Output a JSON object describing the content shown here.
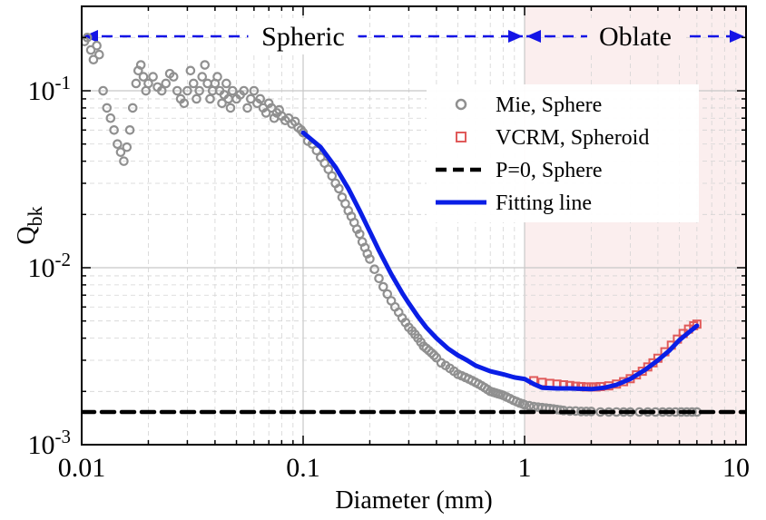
{
  "chart_data": {
    "type": "scatter",
    "title": "",
    "xlabel": "Diameter (mm)",
    "ylabel": "Q",
    "ylabel_subscript": "bk",
    "xscale": "log",
    "yscale": "log",
    "xlim": [
      0.01,
      10
    ],
    "ylim": [
      0.001,
      0.3
    ],
    "grid": true,
    "legend_position": "top-right",
    "x_ticks": [
      {
        "value": 0.01,
        "label": "0.01"
      },
      {
        "value": 0.1,
        "label": "0.1"
      },
      {
        "value": 1,
        "label": "1"
      },
      {
        "value": 10,
        "label": "10"
      }
    ],
    "y_ticks": [
      {
        "value": 0.001,
        "base": "10",
        "exp": "-3"
      },
      {
        "value": 0.01,
        "base": "10",
        "exp": "-2"
      },
      {
        "value": 0.1,
        "base": "10",
        "exp": "-1"
      }
    ],
    "regions": [
      {
        "label": "Spheric",
        "x_range": [
          0.01,
          1
        ],
        "shaded": false
      },
      {
        "label": "Oblate",
        "x_range": [
          1,
          10
        ],
        "shaded": true,
        "shade_color": "#fbeeee"
      }
    ],
    "region_arrow_color": "#1414e6",
    "series": [
      {
        "name": "Mie, Sphere",
        "style": "open-circle",
        "color": "#909090",
        "x": [
          0.0103,
          0.0106,
          0.011,
          0.0113,
          0.0117,
          0.012,
          0.0125,
          0.013,
          0.0135,
          0.014,
          0.0145,
          0.015,
          0.0155,
          0.016,
          0.0165,
          0.017,
          0.0176,
          0.018,
          0.0185,
          0.019,
          0.0195,
          0.02,
          0.021,
          0.022,
          0.023,
          0.024,
          0.025,
          0.026,
          0.027,
          0.028,
          0.029,
          0.03,
          0.031,
          0.032,
          0.033,
          0.034,
          0.035,
          0.036,
          0.037,
          0.038,
          0.039,
          0.04,
          0.041,
          0.042,
          0.043,
          0.044,
          0.045,
          0.046,
          0.047,
          0.048,
          0.05,
          0.052,
          0.054,
          0.056,
          0.058,
          0.06,
          0.062,
          0.064,
          0.066,
          0.068,
          0.07,
          0.072,
          0.074,
          0.076,
          0.078,
          0.08,
          0.083,
          0.086,
          0.089,
          0.092,
          0.095,
          0.098,
          0.1,
          0.105,
          0.11,
          0.115,
          0.12,
          0.125,
          0.13,
          0.135,
          0.14,
          0.145,
          0.15,
          0.155,
          0.16,
          0.165,
          0.17,
          0.175,
          0.18,
          0.185,
          0.19,
          0.195,
          0.2,
          0.21,
          0.22,
          0.23,
          0.24,
          0.25,
          0.26,
          0.27,
          0.28,
          0.29,
          0.3,
          0.31,
          0.32,
          0.33,
          0.34,
          0.35,
          0.36,
          0.37,
          0.38,
          0.39,
          0.4,
          0.42,
          0.44,
          0.46,
          0.48,
          0.5,
          0.52,
          0.54,
          0.56,
          0.58,
          0.6,
          0.62,
          0.64,
          0.66,
          0.68,
          0.7,
          0.72,
          0.74,
          0.76,
          0.78,
          0.8,
          0.83,
          0.86,
          0.89,
          0.92,
          0.95,
          0.98,
          1.0,
          1.05,
          1.1,
          1.15,
          1.2,
          1.25,
          1.3,
          1.35,
          1.4,
          1.45,
          1.5,
          1.6,
          1.7,
          1.8,
          1.9,
          2.0,
          2.2,
          2.4,
          2.6,
          2.8,
          3.0,
          3.3,
          3.6,
          3.9,
          4.2,
          4.5,
          4.8,
          5.1,
          5.4,
          5.7,
          6.0
        ],
        "y": [
          0.19,
          0.2,
          0.17,
          0.15,
          0.18,
          0.16,
          0.1,
          0.08,
          0.07,
          0.06,
          0.05,
          0.045,
          0.04,
          0.048,
          0.06,
          0.08,
          0.11,
          0.13,
          0.14,
          0.12,
          0.1,
          0.11,
          0.12,
          0.105,
          0.1,
          0.11,
          0.125,
          0.12,
          0.1,
          0.09,
          0.085,
          0.1,
          0.13,
          0.11,
          0.09,
          0.1,
          0.12,
          0.14,
          0.11,
          0.09,
          0.1,
          0.11,
          0.12,
          0.1,
          0.085,
          0.095,
          0.11,
          0.09,
          0.08,
          0.1,
          0.09,
          0.095,
          0.1,
          0.08,
          0.09,
          0.1,
          0.085,
          0.09,
          0.08,
          0.075,
          0.085,
          0.08,
          0.07,
          0.075,
          0.078,
          0.072,
          0.068,
          0.07,
          0.065,
          0.067,
          0.062,
          0.06,
          0.058,
          0.052,
          0.05,
          0.046,
          0.042,
          0.039,
          0.036,
          0.033,
          0.03,
          0.028,
          0.025,
          0.023,
          0.021,
          0.0195,
          0.018,
          0.0165,
          0.0155,
          0.014,
          0.013,
          0.012,
          0.0112,
          0.0098,
          0.0087,
          0.0078,
          0.0071,
          0.0065,
          0.006,
          0.0056,
          0.0052,
          0.0049,
          0.0046,
          0.0044,
          0.0042,
          0.004,
          0.0038,
          0.0036,
          0.0035,
          0.0034,
          0.0033,
          0.0032,
          0.0031,
          0.0029,
          0.0028,
          0.0027,
          0.0026,
          0.0025,
          0.00245,
          0.0024,
          0.00235,
          0.0023,
          0.00225,
          0.0022,
          0.00215,
          0.0021,
          0.00205,
          0.002,
          0.00198,
          0.00196,
          0.00194,
          0.00192,
          0.0019,
          0.00186,
          0.00182,
          0.00178,
          0.00175,
          0.00172,
          0.0017,
          0.00168,
          0.00166,
          0.00164,
          0.00163,
          0.00162,
          0.00161,
          0.0016,
          0.00159,
          0.00158,
          0.00157,
          0.00156,
          0.00155,
          0.00155,
          0.00154,
          0.00154,
          0.00154,
          0.00153,
          0.00153,
          0.00153,
          0.00153,
          0.00153,
          0.00153,
          0.00153,
          0.00153,
          0.00153,
          0.00153,
          0.00153,
          0.00153,
          0.00153,
          0.00153,
          0.00153
        ]
      },
      {
        "name": "VCRM, Spheroid",
        "style": "open-square",
        "color": "#e05a5a",
        "x": [
          1.1,
          1.2,
          1.3,
          1.4,
          1.5,
          1.6,
          1.7,
          1.8,
          1.9,
          2.0,
          2.1,
          2.2,
          2.4,
          2.6,
          2.8,
          3.0,
          3.2,
          3.4,
          3.6,
          3.8,
          4.0,
          4.3,
          4.6,
          4.9,
          5.2,
          5.5,
          5.8,
          6.0
        ],
        "y": [
          0.0023,
          0.00225,
          0.00222,
          0.0022,
          0.00218,
          0.00216,
          0.00214,
          0.00213,
          0.00212,
          0.00212,
          0.00212,
          0.00213,
          0.00215,
          0.0022,
          0.00227,
          0.00236,
          0.00248,
          0.0026,
          0.00275,
          0.0029,
          0.00308,
          0.00335,
          0.00365,
          0.00395,
          0.00425,
          0.0045,
          0.0047,
          0.0048
        ]
      },
      {
        "name": "P=0, Sphere",
        "style": "dashed-line",
        "color": "#000000",
        "x": [
          0.01,
          10
        ],
        "y": [
          0.00153,
          0.00153
        ]
      },
      {
        "name": "Fitting line",
        "style": "solid-line",
        "color": "#0a1ee6",
        "x": [
          0.1,
          0.12,
          0.14,
          0.16,
          0.18,
          0.2,
          0.22,
          0.25,
          0.28,
          0.3,
          0.33,
          0.36,
          0.4,
          0.45,
          0.5,
          0.55,
          0.6,
          0.7,
          0.8,
          0.9,
          1.0,
          1.1,
          1.2,
          1.4,
          1.6,
          1.8,
          2.0,
          2.3,
          2.6,
          3.0,
          3.5,
          4.0,
          4.5,
          5.0,
          5.5,
          6.0
        ],
        "y": [
          0.058,
          0.048,
          0.037,
          0.028,
          0.021,
          0.016,
          0.0125,
          0.0092,
          0.0072,
          0.0063,
          0.0053,
          0.0046,
          0.004,
          0.0035,
          0.0032,
          0.003,
          0.0028,
          0.0026,
          0.0025,
          0.0024,
          0.00235,
          0.0022,
          0.0021,
          0.00208,
          0.00208,
          0.00207,
          0.00206,
          0.0021,
          0.00218,
          0.00235,
          0.00265,
          0.003,
          0.0034,
          0.0039,
          0.0043,
          0.0047
        ]
      }
    ]
  }
}
